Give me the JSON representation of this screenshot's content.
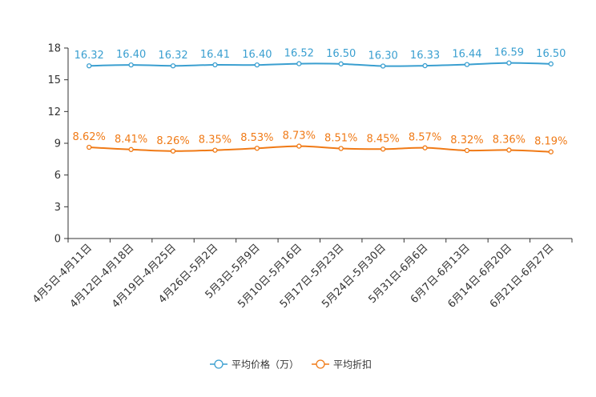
{
  "chart_data": {
    "type": "line",
    "title": "",
    "xlabel": "",
    "ylabel": "",
    "ylim": [
      0,
      18
    ],
    "yticks": [
      0,
      3,
      6,
      9,
      12,
      15,
      18
    ],
    "grid": false,
    "legend_position": "bottom-center",
    "categories": [
      "4月5日-4月11日",
      "4月12日-4月18日",
      "4月19日-4月25日",
      "4月26日-5月2日",
      "5月3日-5月9日",
      "5月10日-5月16日",
      "5月17日-5月23日",
      "5月24日-5月30日",
      "5月31日-6月6日",
      "6月7日-6月13日",
      "6月14日-6月20日",
      "6月21日-6月27日"
    ],
    "series": [
      {
        "name": "平均价格（万）",
        "color": "#3a9fd0",
        "values": [
          16.32,
          16.4,
          16.32,
          16.41,
          16.4,
          16.52,
          16.5,
          16.3,
          16.33,
          16.44,
          16.59,
          16.5
        ],
        "labels": [
          "16.32",
          "16.40",
          "16.32",
          "16.41",
          "16.40",
          "16.52",
          "16.50",
          "16.30",
          "16.33",
          "16.44",
          "16.59",
          "16.50"
        ]
      },
      {
        "name": "平均折扣",
        "color": "#f07a16",
        "values": [
          8.62,
          8.41,
          8.26,
          8.35,
          8.53,
          8.73,
          8.51,
          8.45,
          8.57,
          8.32,
          8.36,
          8.19
        ],
        "labels": [
          "8.62%",
          "8.41%",
          "8.26%",
          "8.35%",
          "8.53%",
          "8.73%",
          "8.51%",
          "8.45%",
          "8.57%",
          "8.32%",
          "8.36%",
          "8.19%"
        ]
      }
    ]
  }
}
